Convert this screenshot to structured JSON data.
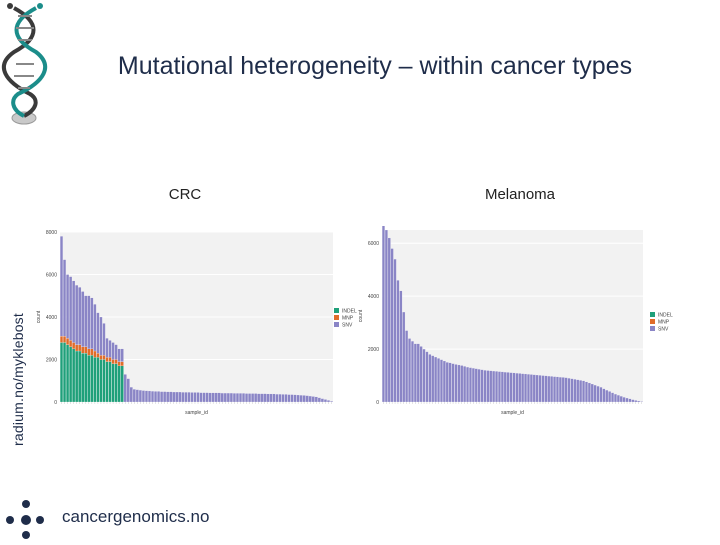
{
  "slide": {
    "title": "Mutational heterogeneity – within cancer types",
    "side_credit": "radium.no/myklebost",
    "footer": "cancergenomics.no",
    "logo_icon": "dna-helix-icon",
    "footer_icon": "dot-cluster-icon"
  },
  "colors": {
    "SNV": "#8a85c6",
    "MNP": "#e06c2a",
    "INDEL": "#1fa07a",
    "axis": "#999999",
    "text": "#1f2d4a"
  },
  "chart_data": [
    {
      "type": "bar",
      "title": "CRC",
      "xlabel": "sample_id",
      "ylabel": "count",
      "ylim": [
        0,
        8000
      ],
      "y_ticks": [
        "0",
        "2000",
        "4000",
        "6000",
        "8000"
      ],
      "legend_position": "right",
      "legend": [
        "INDEL",
        "MNP",
        "SNV"
      ],
      "n_samples": 90,
      "series": [
        {
          "name": "INDEL",
          "values": [
            2800,
            2800,
            2700,
            2600,
            2500,
            2400,
            2400,
            2300,
            2300,
            2200,
            2200,
            2100,
            2100,
            2000,
            2000,
            1900,
            1900,
            1800,
            1800,
            1700,
            1700,
            0
          ]
        },
        {
          "name": "MNP",
          "values": [
            300,
            300,
            300,
            300,
            300,
            300,
            300,
            300,
            300,
            300,
            300,
            300,
            200,
            200,
            200,
            200,
            200,
            200,
            200,
            200,
            200,
            0
          ]
        },
        {
          "name": "SNV",
          "values": [
            4700,
            3600,
            3000,
            3000,
            2900,
            2800,
            2700,
            2600,
            2400,
            2500,
            2400,
            2200,
            1900,
            1800,
            1500,
            900,
            800,
            800,
            700,
            600,
            600,
            1300,
            1100,
            700,
            600,
            580,
            560,
            540,
            530,
            520,
            510,
            500,
            500,
            490,
            490,
            480,
            480,
            470,
            470,
            470,
            460,
            460,
            460,
            450,
            450,
            450,
            440,
            440,
            440,
            430,
            430,
            430,
            430,
            420,
            420,
            420,
            420,
            410,
            410,
            410,
            410,
            400,
            400,
            400,
            400,
            390,
            390,
            390,
            380,
            380,
            380,
            370,
            370,
            360,
            360,
            350,
            350,
            340,
            330,
            320,
            310,
            300,
            280,
            260,
            240,
            200,
            160,
            120,
            80,
            40
          ]
        }
      ]
    },
    {
      "type": "bar",
      "title": "Melanoma",
      "xlabel": "sample_id",
      "ylabel": "count",
      "ylim": [
        0,
        6500
      ],
      "y_ticks": [
        "0",
        "2000",
        "4000",
        "6000"
      ],
      "legend_position": "right",
      "legend": [
        "INDEL",
        "MNP",
        "SNV"
      ],
      "n_samples": 90,
      "series": [
        {
          "name": "SNV",
          "values": [
            6800,
            6500,
            6200,
            5800,
            5400,
            4600,
            4200,
            3400,
            2700,
            2400,
            2300,
            2200,
            2200,
            2100,
            2000,
            1900,
            1800,
            1750,
            1700,
            1650,
            1600,
            1550,
            1500,
            1480,
            1450,
            1420,
            1400,
            1380,
            1350,
            1320,
            1300,
            1280,
            1260,
            1240,
            1220,
            1200,
            1190,
            1180,
            1170,
            1160,
            1150,
            1140,
            1130,
            1120,
            1110,
            1100,
            1090,
            1080,
            1070,
            1060,
            1050,
            1040,
            1030,
            1020,
            1010,
            1000,
            990,
            980,
            970,
            960,
            950,
            940,
            930,
            920,
            900,
            880,
            860,
            840,
            820,
            800,
            760,
            720,
            680,
            640,
            600,
            560,
            500,
            450,
            400,
            350,
            300,
            260,
            220,
            180,
            150,
            120,
            90,
            60,
            40,
            20
          ]
        },
        {
          "name": "MNP",
          "values": []
        },
        {
          "name": "INDEL",
          "values": []
        }
      ]
    }
  ]
}
